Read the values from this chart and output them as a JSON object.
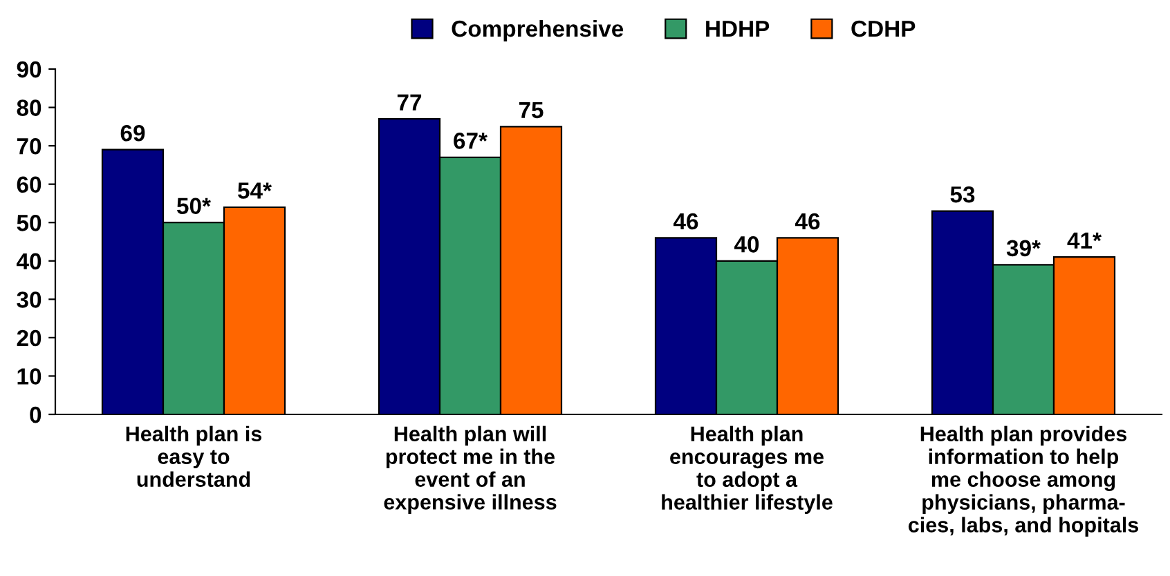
{
  "chart_data": {
    "type": "bar",
    "categories": [
      "Health plan is\neasy to\nunderstand",
      "Health plan will\nprotect me in the\nevent of an\nexpensive illness",
      "Health plan\nencourages me\nto adopt a\nhealthier lifestyle",
      "Health plan provides\ninformation to help\nme choose among\nphysicians, pharma-\ncies, labs, and hopitals"
    ],
    "series": [
      {
        "name": "Comprehensive",
        "color": "#000080",
        "values": [
          69,
          77,
          46,
          53
        ],
        "value_labels": [
          "69",
          "77",
          "46",
          "53"
        ]
      },
      {
        "name": "HDHP",
        "color": "#339966",
        "values": [
          50,
          67,
          40,
          39
        ],
        "value_labels": [
          "50*",
          "67*",
          "40",
          "39*"
        ]
      },
      {
        "name": "CDHP",
        "color": "#ff6600",
        "values": [
          54,
          75,
          46,
          41
        ],
        "value_labels": [
          "54*",
          "75",
          "46",
          "41*"
        ]
      }
    ],
    "ylim": [
      0,
      90
    ],
    "yticks": [
      0,
      10,
      20,
      30,
      40,
      50,
      60,
      70,
      80,
      90
    ],
    "grid": false,
    "legend": "top"
  }
}
